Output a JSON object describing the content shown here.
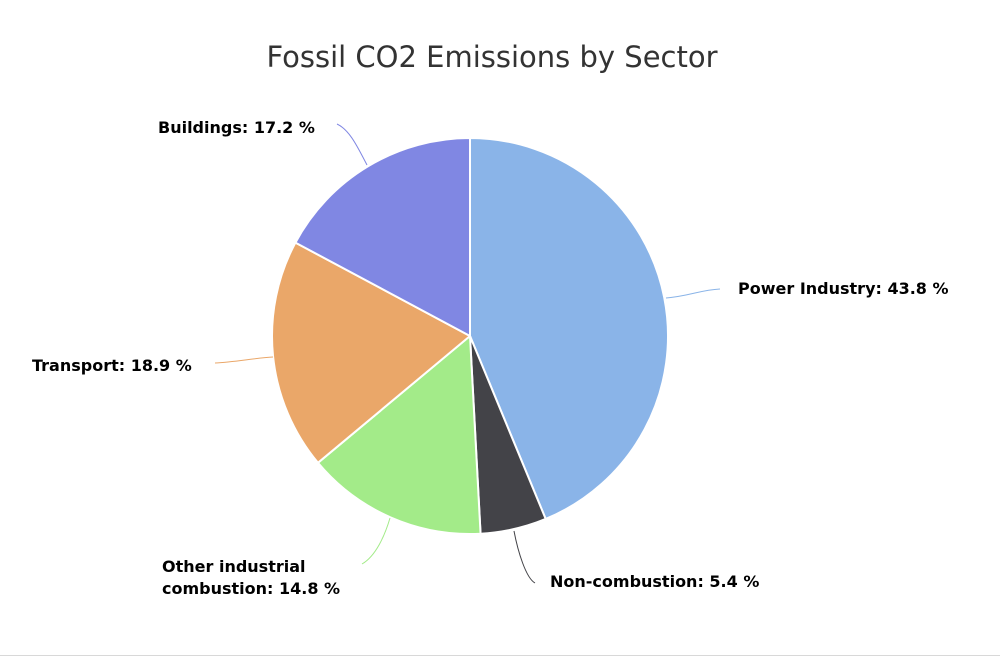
{
  "chart_data": {
    "type": "pie",
    "title": "Fossil CO2 Emissions by Sector",
    "unit": "%",
    "slices": [
      {
        "name": "Power Industry",
        "value": 43.8,
        "label": [
          "Power Industry: 43.8 %"
        ],
        "color": "#8ab4e8"
      },
      {
        "name": "Non-combustion",
        "value": 5.4,
        "label": [
          "Non-combustion: 5.4 %"
        ],
        "color": "#434348"
      },
      {
        "name": "Other industrial combustion",
        "value": 14.8,
        "label": [
          "Other industrial",
          "combustion: 14.8 %"
        ],
        "color": "#a3eb89"
      },
      {
        "name": "Transport",
        "value": 18.9,
        "label": [
          "Transport: 18.9 %"
        ],
        "color": "#eaa769"
      },
      {
        "name": "Buildings",
        "value": 17.2,
        "label": [
          "Buildings: 17.2 %"
        ],
        "color": "#8087e3"
      }
    ],
    "legend": "none",
    "data_labels": "outside-with-connectors"
  }
}
